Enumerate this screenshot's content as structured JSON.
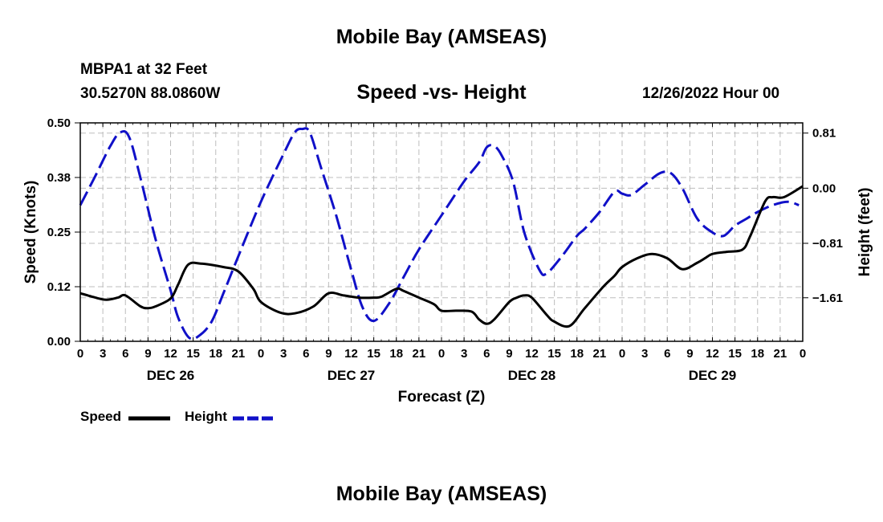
{
  "header": {
    "title": "Mobile Bay (AMSEAS)",
    "station": "MBPA1 at 32 Feet",
    "coords": "30.5270N  88.0860W",
    "chart_title": "Speed -vs- Height",
    "date": "12/26/2022 Hour 00"
  },
  "footer": {
    "title": "Mobile Bay (AMSEAS)"
  },
  "legend": {
    "speed_label": "Speed",
    "height_label": "Height",
    "speed_color": "#000000",
    "height_color": "#1010c8"
  },
  "chart_data": {
    "type": "line",
    "title": "Speed -vs- Height",
    "xlabel": "Forecast (Z)",
    "ylabel_left": "Speed (Knots)",
    "ylabel_right": "Height (feet)",
    "x_range": [
      0,
      96
    ],
    "ylim_left": [
      0,
      0.5
    ],
    "ylim_right": [
      -2.25,
      0.96
    ],
    "grid": true,
    "x_ticks": [
      0,
      3,
      6,
      9,
      12,
      15,
      18,
      21,
      24,
      27,
      30,
      33,
      36,
      39,
      42,
      45,
      48,
      51,
      54,
      57,
      60,
      63,
      66,
      69,
      72,
      75,
      78,
      81,
      84,
      87,
      90,
      93,
      96
    ],
    "x_tick_labels": [
      "0",
      "3",
      "6",
      "9",
      "12",
      "15",
      "18",
      "21",
      "0",
      "3",
      "6",
      "9",
      "12",
      "15",
      "18",
      "21",
      "0",
      "3",
      "6",
      "9",
      "12",
      "15",
      "18",
      "21",
      "0",
      "3",
      "6",
      "9",
      "12",
      "15",
      "18",
      "21",
      "0"
    ],
    "day_labels": [
      {
        "x": 12,
        "label": "DEC 26"
      },
      {
        "x": 36,
        "label": "DEC 27"
      },
      {
        "x": 60,
        "label": "DEC 28"
      },
      {
        "x": 84,
        "label": "DEC 29"
      }
    ],
    "y_left_ticks": [
      0.0,
      0.125,
      0.25,
      0.375,
      0.5
    ],
    "y_left_tick_labels": [
      "0.00",
      "0.12",
      "0.25",
      "0.38",
      "0.50"
    ],
    "y_right_ticks": [
      0.81,
      0.0,
      -0.81,
      -1.61
    ],
    "y_right_tick_labels": [
      "0.81",
      "0.00",
      "−0.81",
      "−1.61"
    ],
    "series": [
      {
        "name": "Speed",
        "axis": "left",
        "style": "solid",
        "color": "#000000",
        "x": [
          0,
          2,
          3.5,
          5,
          6,
          8,
          9,
          10,
          12,
          13,
          14.3,
          16,
          19,
          21,
          23,
          24,
          26.5,
          28.5,
          31,
          33,
          35,
          37,
          39,
          40,
          42,
          43,
          45,
          47,
          48,
          50,
          52,
          53,
          54,
          55,
          57,
          58,
          59,
          60,
          62,
          63,
          65,
          67,
          69.5,
          71,
          72,
          74,
          76,
          78,
          80,
          82,
          83,
          84,
          86,
          88,
          89,
          91,
          92,
          93.5,
          96
        ],
        "values": [
          0.11,
          0.1,
          0.095,
          0.1,
          0.105,
          0.08,
          0.076,
          0.08,
          0.098,
          0.13,
          0.175,
          0.178,
          0.17,
          0.16,
          0.12,
          0.09,
          0.066,
          0.064,
          0.08,
          0.11,
          0.105,
          0.1,
          0.1,
          0.102,
          0.12,
          0.115,
          0.1,
          0.085,
          0.07,
          0.07,
          0.068,
          0.05,
          0.04,
          0.05,
          0.09,
          0.1,
          0.105,
          0.1,
          0.06,
          0.045,
          0.035,
          0.075,
          0.125,
          0.15,
          0.17,
          0.19,
          0.2,
          0.19,
          0.165,
          0.18,
          0.19,
          0.2,
          0.205,
          0.21,
          0.24,
          0.32,
          0.33,
          0.33,
          0.355
        ]
      },
      {
        "name": "Height",
        "axis": "right",
        "style": "dashed",
        "color": "#1010c8",
        "x": [
          0,
          2,
          4,
          5.3,
          6.5,
          8,
          10,
          12,
          13,
          14.5,
          16,
          17.5,
          19,
          21,
          24,
          27,
          28.5,
          29.5,
          30.5,
          32,
          34,
          36,
          37.5,
          39,
          41,
          43,
          45,
          48,
          51,
          53,
          54,
          55,
          56,
          57.5,
          59,
          61,
          62,
          64,
          66,
          67,
          69,
          71,
          72,
          73.2,
          75,
          77,
          78.5,
          80,
          82,
          84,
          85.5,
          87,
          88.5,
          90,
          92,
          94,
          95.5
        ],
        "values": [
          -0.25,
          0.18,
          0.62,
          0.82,
          0.75,
          0.15,
          -0.75,
          -1.5,
          -1.9,
          -2.2,
          -2.15,
          -1.95,
          -1.55,
          -1.0,
          -0.2,
          0.5,
          0.82,
          0.87,
          0.82,
          0.3,
          -0.4,
          -1.2,
          -1.75,
          -1.95,
          -1.7,
          -1.3,
          -0.9,
          -0.4,
          0.1,
          0.38,
          0.6,
          0.62,
          0.48,
          0.1,
          -0.65,
          -1.2,
          -1.25,
          -1.0,
          -0.7,
          -0.6,
          -0.35,
          -0.05,
          -0.08,
          -0.1,
          0.05,
          0.22,
          0.22,
          0.0,
          -0.45,
          -0.65,
          -0.7,
          -0.55,
          -0.45,
          -0.35,
          -0.25,
          -0.2,
          -0.25
        ]
      }
    ]
  }
}
